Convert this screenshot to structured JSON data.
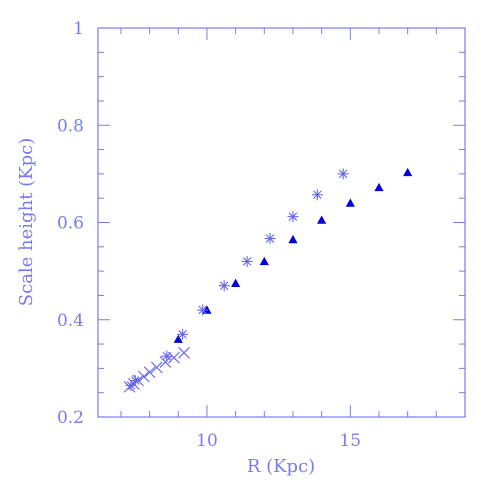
{
  "chart_data": {
    "type": "scatter",
    "title": "",
    "xlabel": "R (Kpc)",
    "ylabel": "Scale height (Kpc)",
    "xlim": [
      6.2,
      19.0
    ],
    "ylim": [
      0.2,
      1.0
    ],
    "xticks": [
      10,
      15
    ],
    "yticks": [
      0.2,
      0.4,
      0.6,
      0.8,
      1.0
    ],
    "ytick_labels": [
      "0.2",
      "0.4",
      "0.6",
      "0.8",
      "1"
    ],
    "xtick_labels": [
      "10",
      "15"
    ],
    "grid": false,
    "colors": {
      "axis": "#7b7bf0",
      "triangle": "#0000e0",
      "star": "#6666f0",
      "cross": "#6666f0"
    },
    "series": [
      {
        "marker": "triangle",
        "x": [
          9.0,
          10.0,
          11.0,
          12.0,
          13.0,
          14.0,
          15.0,
          16.0,
          17.0
        ],
        "y": [
          0.36,
          0.42,
          0.475,
          0.52,
          0.565,
          0.605,
          0.64,
          0.672,
          0.703
        ]
      },
      {
        "marker": "star",
        "x": [
          7.35,
          7.5,
          8.6,
          9.15,
          9.85,
          10.6,
          11.4,
          12.2,
          13.0,
          13.85,
          14.75
        ],
        "y": [
          0.265,
          0.275,
          0.325,
          0.37,
          0.42,
          0.47,
          0.52,
          0.567,
          0.612,
          0.657,
          0.7
        ]
      },
      {
        "marker": "cross",
        "x": [
          7.3,
          7.45,
          7.6,
          7.8,
          8.0,
          8.25,
          8.55,
          8.85,
          9.2
        ],
        "y": [
          0.262,
          0.268,
          0.275,
          0.283,
          0.292,
          0.302,
          0.313,
          0.322,
          0.332
        ]
      }
    ]
  }
}
